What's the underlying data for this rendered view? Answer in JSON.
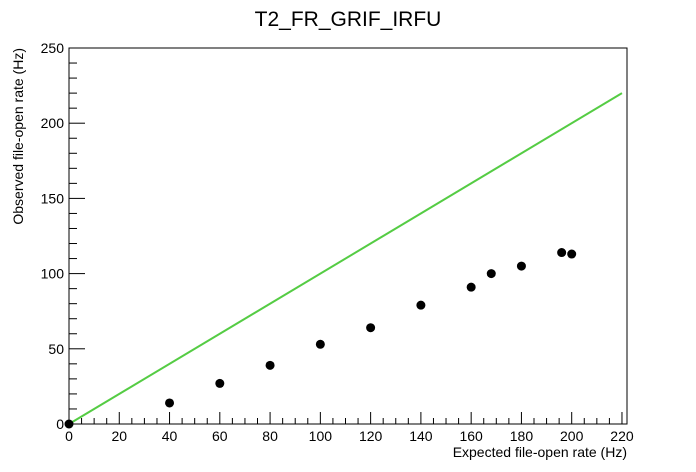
{
  "chart_data": {
    "type": "scatter",
    "title": "T2_FR_GRIF_IRFU",
    "xlabel": "Expected file-open rate (Hz)",
    "ylabel": "Observed file-open rate (Hz)",
    "xlim": [
      0,
      222
    ],
    "ylim": [
      0,
      250
    ],
    "x_ticks": [
      0,
      20,
      40,
      60,
      80,
      100,
      120,
      140,
      160,
      180,
      200,
      220
    ],
    "y_ticks": [
      0,
      50,
      100,
      150,
      200,
      250
    ],
    "grid": false,
    "series": [
      {
        "type": "scatter",
        "color": "#000000",
        "points": [
          {
            "x": 0,
            "y": 0
          },
          {
            "x": 40,
            "y": 14
          },
          {
            "x": 60,
            "y": 27
          },
          {
            "x": 80,
            "y": 39
          },
          {
            "x": 100,
            "y": 53
          },
          {
            "x": 120,
            "y": 64
          },
          {
            "x": 140,
            "y": 79
          },
          {
            "x": 160,
            "y": 91
          },
          {
            "x": 168,
            "y": 100
          },
          {
            "x": 180,
            "y": 105
          },
          {
            "x": 196,
            "y": 114
          },
          {
            "x": 200,
            "y": 113
          }
        ]
      },
      {
        "type": "line",
        "color": "#55cc44",
        "points": [
          {
            "x": 0,
            "y": 0
          },
          {
            "x": 220,
            "y": 220
          }
        ]
      }
    ]
  }
}
